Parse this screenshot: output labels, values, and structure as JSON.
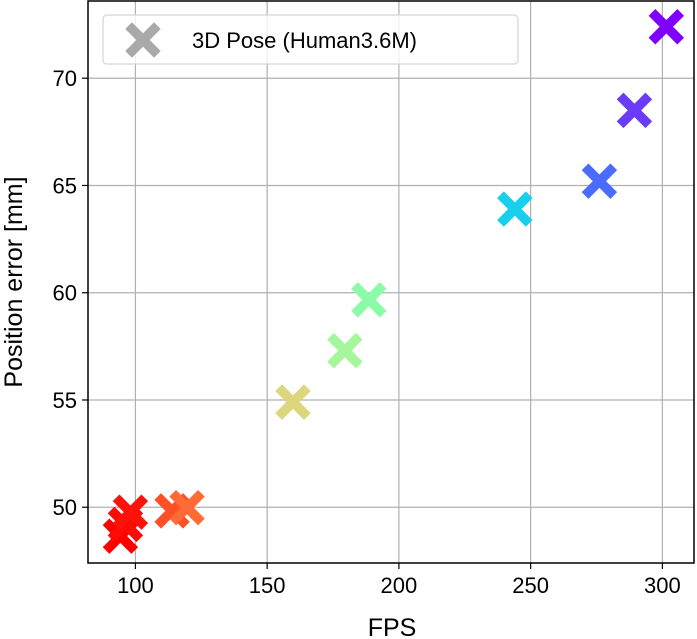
{
  "chart_data": {
    "type": "scatter",
    "title": "",
    "xlabel": "FPS",
    "ylabel": "Position error [mm]",
    "xlim": [
      82,
      312
    ],
    "ylim": [
      47.4,
      73.6
    ],
    "xticks": [
      100,
      150,
      200,
      250,
      300
    ],
    "yticks": [
      50,
      55,
      60,
      65,
      70
    ],
    "grid": true,
    "legend": {
      "placement": "top-left",
      "entries": [
        {
          "label": "3D Pose (Human3.6M)",
          "color": "#a9a9a9",
          "marker": "X"
        }
      ]
    },
    "series": [
      {
        "name": "3D Pose (Human3.6M)",
        "marker": "X",
        "points": [
          {
            "x": 94.3,
            "y": 48.65,
            "color": "#ff0000"
          },
          {
            "x": 96.2,
            "y": 49.2,
            "color": "#ff0a05"
          },
          {
            "x": 98.1,
            "y": 49.77,
            "color": "#ff1209"
          },
          {
            "x": 113.9,
            "y": 49.83,
            "color": "#ff5028"
          },
          {
            "x": 119.6,
            "y": 49.98,
            "color": "#ff6a35"
          },
          {
            "x": 159.8,
            "y": 54.9,
            "color": "#dcd67c"
          },
          {
            "x": 179.5,
            "y": 57.3,
            "color": "#a6f79c"
          },
          {
            "x": 188.6,
            "y": 59.67,
            "color": "#8cfba8"
          },
          {
            "x": 244.0,
            "y": 63.9,
            "color": "#18cfee"
          },
          {
            "x": 276.1,
            "y": 65.2,
            "color": "#4a6cfc"
          },
          {
            "x": 289.4,
            "y": 68.5,
            "color": "#6a3cf8"
          },
          {
            "x": 301.5,
            "y": 72.4,
            "color": "#8000ff"
          }
        ]
      }
    ]
  }
}
